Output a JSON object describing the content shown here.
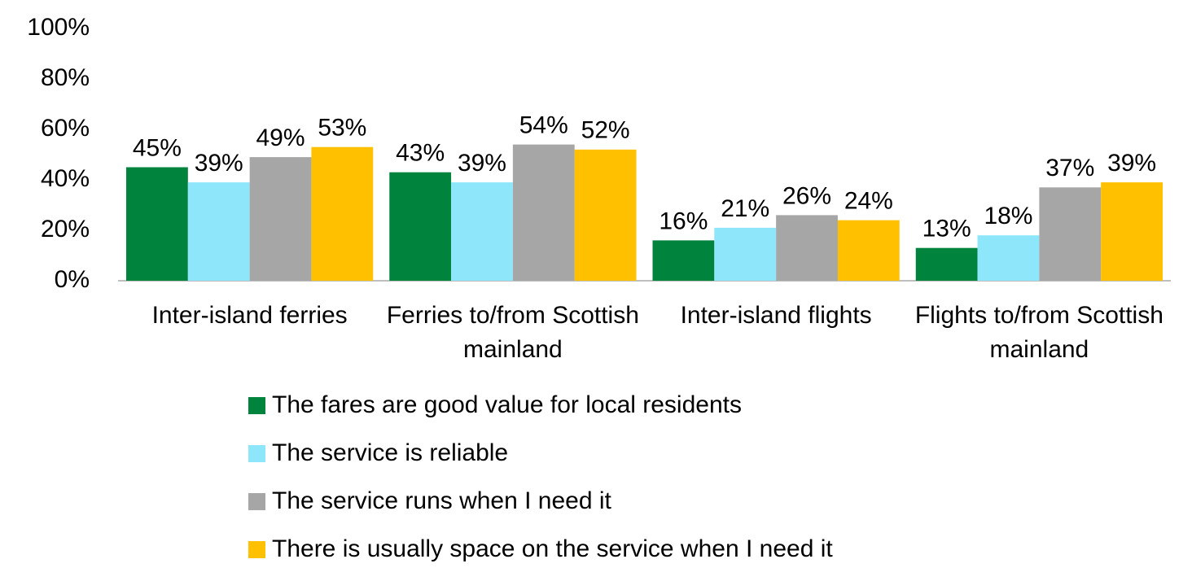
{
  "chart_data": {
    "type": "bar",
    "categories": [
      "Inter-island ferries",
      "Ferries to/from Scottish mainland",
      "Inter-island flights",
      "Flights to/from Scottish mainland"
    ],
    "series": [
      {
        "name": "The fares are good value for local residents",
        "color": "#00843d",
        "values": [
          45,
          43,
          16,
          13
        ],
        "value_labels": [
          "45%",
          "43%",
          "16%",
          "13%"
        ]
      },
      {
        "name": "The service is reliable",
        "color": "#8ee6fb",
        "values": [
          39,
          39,
          21,
          18
        ],
        "value_labels": [
          "39%",
          "39%",
          "21%",
          "18%"
        ]
      },
      {
        "name": "The service runs when I need it",
        "color": "#a6a6a6",
        "values": [
          49,
          54,
          26,
          37
        ],
        "value_labels": [
          "49%",
          "54%",
          "26%",
          "37%"
        ]
      },
      {
        "name": "There is usually space on the service when I need it",
        "color": "#ffc000",
        "values": [
          53,
          52,
          24,
          39
        ],
        "value_labels": [
          "53%",
          "52%",
          "24%",
          "39%"
        ]
      }
    ],
    "ylim": [
      0,
      100
    ],
    "yticks": [
      {
        "value": 0,
        "label": "0%"
      },
      {
        "value": 20,
        "label": "20%"
      },
      {
        "value": 40,
        "label": "40%"
      },
      {
        "value": 60,
        "label": "60%"
      },
      {
        "value": 80,
        "label": "80%"
      },
      {
        "value": 100,
        "label": "100%"
      }
    ],
    "grid": false,
    "legend": "bottom"
  }
}
